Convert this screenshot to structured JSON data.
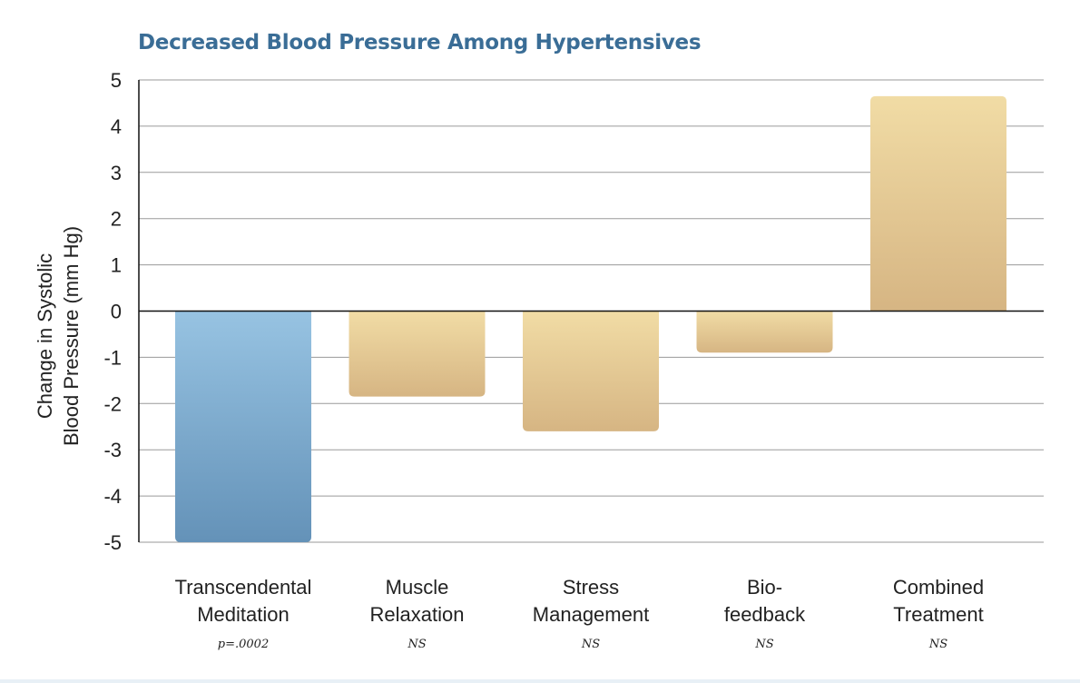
{
  "chart_data": {
    "type": "bar",
    "title": "Decreased Blood Pressure Among Hypertensives",
    "ylabel_lines": [
      "Change in Systolic",
      "Blood Pressure (mm Hg)"
    ],
    "xlabel": "",
    "ylim": [
      -5,
      5
    ],
    "yticks": [
      5,
      4,
      3,
      2,
      1,
      0,
      -1,
      -2,
      -3,
      -4,
      -5
    ],
    "grid": true,
    "categories": [
      {
        "lines": [
          "Transcendental",
          "Meditation"
        ],
        "note": "p=.0002",
        "value": -5.0,
        "color": "blue"
      },
      {
        "lines": [
          "Muscle",
          "Relaxation"
        ],
        "note": "NS",
        "value": -1.85,
        "color": "tan"
      },
      {
        "lines": [
          "Stress",
          "Management"
        ],
        "note": "NS",
        "value": -2.6,
        "color": "tan"
      },
      {
        "lines": [
          "Bio-",
          "feedback"
        ],
        "note": "NS",
        "value": -0.9,
        "color": "tan"
      },
      {
        "lines": [
          "Combined",
          "Treatment"
        ],
        "note": "NS",
        "value": 4.65,
        "color": "tan"
      }
    ],
    "colors": {
      "title": "#3a6d96",
      "blue_top": "#97c3e2",
      "blue_bottom": "#6492b8",
      "tan_top": "#f1dca5",
      "tan_bottom": "#d6b583",
      "grid": "#9a9a9a",
      "axis": "#111111"
    }
  }
}
